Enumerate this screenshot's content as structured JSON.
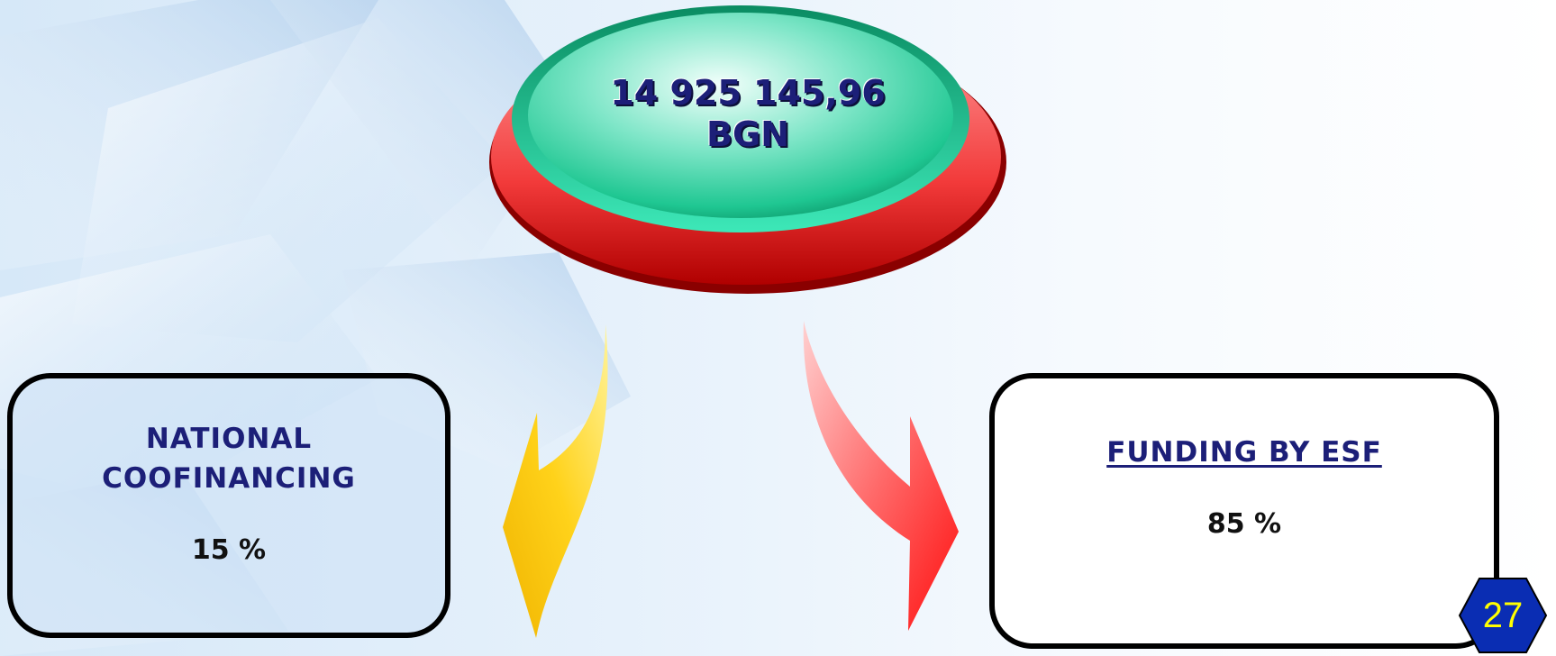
{
  "total": {
    "amount": "14 925 145,96",
    "currency": "BGN"
  },
  "national": {
    "title_line1": "NATIONAL",
    "title_line2": "COOFINANCING",
    "percent": "15 %",
    "share": 0.15
  },
  "esf": {
    "title": "FUNDING BY ESF",
    "percent": "85 %",
    "share": 0.85
  },
  "page_number": "27",
  "colors": {
    "ellipse_top": "#2fd4a6",
    "ellipse_bottom": "#ee3333",
    "arrow_left": "#ffd21a",
    "arrow_right": "#ff2a2a",
    "text_dark_blue": "#1c1f78",
    "page_badge": "#0a2db3",
    "page_text": "#ffff00"
  }
}
